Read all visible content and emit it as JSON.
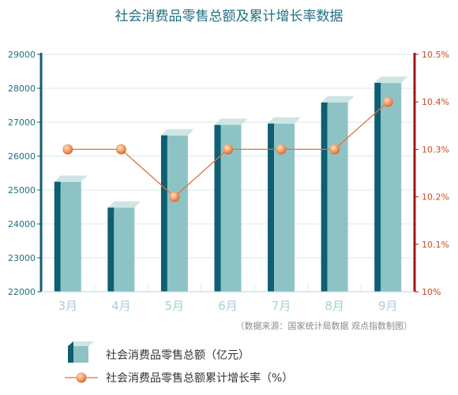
{
  "chart_data": {
    "type": "bar+line",
    "title": "社会消费品零售总额及累计增长率数据",
    "categories": [
      "3月",
      "4月",
      "5月",
      "6月",
      "7月",
      "8月",
      "9月"
    ],
    "series": [
      {
        "name": "社会消费品零售总额（亿元）",
        "type": "bar",
        "axis": "left",
        "values": [
          25240,
          24480,
          26610,
          26920,
          26960,
          27580,
          28160
        ]
      },
      {
        "name": "社会消费品零售总额累计增长率（%）",
        "type": "line",
        "axis": "right",
        "values": [
          10.3,
          10.3,
          10.2,
          10.3,
          10.3,
          10.3,
          10.4
        ]
      }
    ],
    "y_left": {
      "range": [
        22000,
        29000
      ],
      "ticks": [
        "22000",
        "23000",
        "24000",
        "25000",
        "26000",
        "27000",
        "28000",
        "29000"
      ]
    },
    "y_right": {
      "range": [
        10.0,
        10.5
      ],
      "ticks": [
        "10%",
        "10.1%",
        "10.2%",
        "10.3%",
        "10.4%",
        "10.5%"
      ]
    },
    "source": "（数据来源：国家统计局数据 观点指数制图）",
    "legend_position": "bottom-left",
    "colors": {
      "bar_front": "#8ec3c5",
      "bar_side": "#0d5f72",
      "bar_top": "#cfe5e4",
      "line": "#e0703f",
      "marker": "#f0a070",
      "left_axis": "#0d5f72",
      "right_axis": "#a31515",
      "grid": "#d3ebe8",
      "title": "#1f6f80"
    }
  }
}
